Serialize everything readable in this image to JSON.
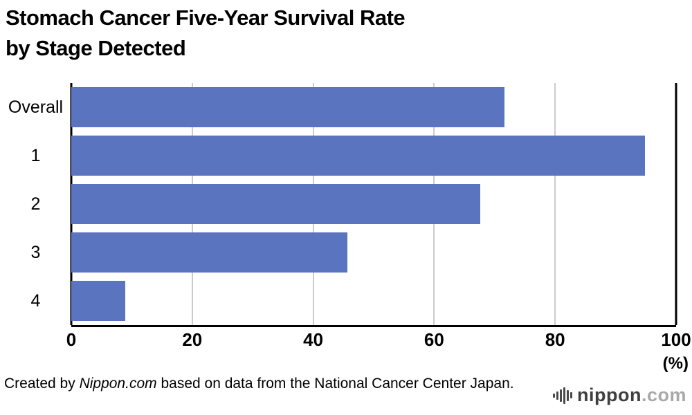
{
  "title": {
    "line1": "Stomach Cancer Five-Year Survival Rate",
    "line2": "by Stage Detected"
  },
  "chart_data": {
    "type": "bar",
    "orientation": "horizontal",
    "title": "Stomach Cancer Five-Year Survival Rate by Stage Detected",
    "categories": [
      "Overall",
      "1",
      "2",
      "3",
      "4"
    ],
    "values": [
      71.6,
      94.9,
      67.6,
      45.7,
      8.9
    ],
    "x_ticks": [
      0,
      20,
      40,
      60,
      80,
      100
    ],
    "xlim": [
      0,
      100
    ],
    "unit_label": "(%)",
    "bar_color": "#5b74bf",
    "gridline_color": "#cbcbcb",
    "axis_color": "#000000",
    "grid": true,
    "legend": "none"
  },
  "footer": {
    "credit_prefix": "Created by ",
    "credit_source": "Nippon.com",
    "credit_suffix": " based on data from the National Cancer Center Japan.",
    "logo_icon": "soundwave-icon",
    "logo_text_primary": "nippon",
    "logo_text_secondary": ".com"
  }
}
